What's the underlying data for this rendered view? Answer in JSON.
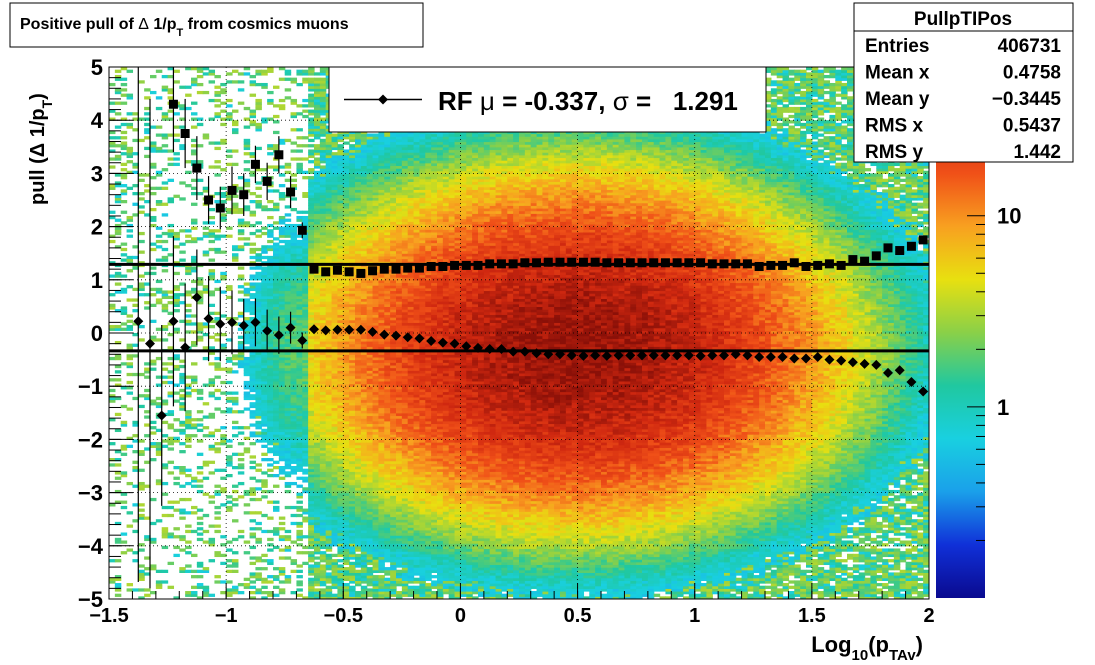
{
  "title": {
    "prefix": "Positive pull of ",
    "delta": "Δ",
    "one_over_p": " 1/p",
    "sub": "T",
    "suffix": " from cosmics muons"
  },
  "stats": {
    "name": "PullpTIPos",
    "rows": [
      {
        "label": "Entries",
        "value": "406731"
      },
      {
        "label": "Mean x",
        "value": "0.4758"
      },
      {
        "label": "Mean y",
        "value": "−0.3445"
      },
      {
        "label": "RMS x",
        "value": "0.5437"
      },
      {
        "label": "RMS y",
        "value": "1.442"
      }
    ]
  },
  "legend": {
    "text_rf": "RF ",
    "mu": "μ",
    "text_mu_val": " = -0.337, ",
    "sigma": "σ",
    "text_sigma_val": " =   1.291"
  },
  "colors": {
    "frame": "#000000",
    "grid": "#000000"
  },
  "chart_data": {
    "type": "heatmap",
    "xlabel_main": "Log",
    "xlabel_sub": "10",
    "xlabel_paren_open": "(p",
    "xlabel_sub2": "TAv",
    "xlabel_paren_close": ")",
    "ylabel_main": "pull (Δ 1/p",
    "ylabel_sub": "T",
    "ylabel_close": ")",
    "xlim": [
      -1.5,
      2.0
    ],
    "ylim": [
      -5,
      5
    ],
    "grid": true,
    "x_ticks": [
      -1.5,
      -1,
      -0.5,
      0,
      0.5,
      1,
      1.5,
      2
    ],
    "x_tick_labels": [
      "−1.5",
      "−1",
      "−0.5",
      "0",
      "0.5",
      "1",
      "1.5",
      "2"
    ],
    "y_ticks": [
      -5,
      -4,
      -3,
      -2,
      -1,
      0,
      1,
      2,
      3,
      4,
      5
    ],
    "y_tick_labels": [
      "−5",
      "−4",
      "−3",
      "−2",
      "−1",
      "0",
      "1",
      "2",
      "3",
      "4",
      "5"
    ],
    "colorbar": {
      "scale": "log",
      "zlim": [
        0.1,
        60
      ],
      "tick_values": [
        1,
        10
      ],
      "tick_labels": [
        "1",
        "10"
      ]
    },
    "reference_lines": [
      {
        "y": 1.291
      },
      {
        "y": -0.337
      }
    ],
    "density_peak": {
      "x": 0.5,
      "y": -0.3
    },
    "sigma_series": {
      "x": [
        -1.225,
        -1.175,
        -1.125,
        -1.075,
        -1.025,
        -0.975,
        -0.925,
        -0.875,
        -0.825,
        -0.775,
        -0.725,
        -0.675,
        -0.625,
        -0.575,
        -0.525,
        -0.475,
        -0.425,
        -0.375,
        -0.325,
        -0.275,
        -0.225,
        -0.175,
        -0.125,
        -0.075,
        -0.025,
        0.025,
        0.075,
        0.125,
        0.175,
        0.225,
        0.275,
        0.325,
        0.375,
        0.425,
        0.475,
        0.525,
        0.575,
        0.625,
        0.675,
        0.725,
        0.775,
        0.825,
        0.875,
        0.925,
        0.975,
        1.025,
        1.075,
        1.125,
        1.175,
        1.225,
        1.275,
        1.325,
        1.375,
        1.425,
        1.475,
        1.525,
        1.575,
        1.625,
        1.675,
        1.725,
        1.775,
        1.825,
        1.875,
        1.925,
        1.975
      ],
      "y": [
        4.3,
        3.75,
        3.1,
        2.5,
        2.35,
        2.68,
        2.6,
        3.17,
        2.85,
        3.35,
        2.65,
        1.93,
        1.2,
        1.15,
        1.18,
        1.15,
        1.12,
        1.17,
        1.2,
        1.2,
        1.22,
        1.22,
        1.25,
        1.25,
        1.27,
        1.27,
        1.27,
        1.3,
        1.3,
        1.3,
        1.32,
        1.32,
        1.33,
        1.33,
        1.33,
        1.33,
        1.33,
        1.32,
        1.32,
        1.32,
        1.32,
        1.32,
        1.32,
        1.32,
        1.32,
        1.32,
        1.3,
        1.3,
        1.3,
        1.3,
        1.25,
        1.27,
        1.27,
        1.32,
        1.25,
        1.27,
        1.3,
        1.27,
        1.38,
        1.35,
        1.45,
        1.6,
        1.55,
        1.63,
        1.75
      ],
      "yerr": [
        0.9,
        0.65,
        0.6,
        0.45,
        0.4,
        0.45,
        0.4,
        0.35,
        0.35,
        0.35,
        0.3,
        0.15,
        0.05,
        0.05,
        0.03,
        0.03,
        0.03,
        0.02,
        0.02,
        0.02,
        0.02,
        0.02,
        0.02,
        0.02,
        0.02,
        0.02,
        0.02,
        0.02,
        0.02,
        0.02,
        0.02,
        0.02,
        0.02,
        0.02,
        0.02,
        0.02,
        0.02,
        0.02,
        0.02,
        0.02,
        0.02,
        0.02,
        0.02,
        0.02,
        0.02,
        0.02,
        0.02,
        0.02,
        0.02,
        0.02,
        0.02,
        0.02,
        0.02,
        0.02,
        0.02,
        0.02,
        0.02,
        0.02,
        0.03,
        0.03,
        0.03,
        0.04,
        0.04,
        0.05,
        0.06
      ]
    },
    "mean_series": {
      "x": [
        -1.375,
        -1.325,
        -1.275,
        -1.225,
        -1.175,
        -1.125,
        -1.075,
        -1.025,
        -0.975,
        -0.925,
        -0.875,
        -0.825,
        -0.775,
        -0.725,
        -0.675,
        -0.625,
        -0.575,
        -0.525,
        -0.475,
        -0.425,
        -0.375,
        -0.325,
        -0.275,
        -0.225,
        -0.175,
        -0.125,
        -0.075,
        -0.025,
        0.025,
        0.075,
        0.125,
        0.175,
        0.225,
        0.275,
        0.325,
        0.375,
        0.425,
        0.475,
        0.525,
        0.575,
        0.625,
        0.675,
        0.725,
        0.775,
        0.825,
        0.875,
        0.925,
        0.975,
        1.025,
        1.075,
        1.125,
        1.175,
        1.225,
        1.275,
        1.325,
        1.375,
        1.425,
        1.475,
        1.525,
        1.575,
        1.625,
        1.675,
        1.725,
        1.775,
        1.825,
        1.875,
        1.925,
        1.975
      ],
      "y": [
        0.22,
        -0.2,
        -1.55,
        0.22,
        -0.27,
        0.67,
        0.27,
        0.17,
        0.2,
        0.14,
        0.2,
        0.04,
        -0.04,
        0.1,
        -0.14,
        0.07,
        0.05,
        0.06,
        0.06,
        0.06,
        0.02,
        -0.03,
        -0.05,
        -0.08,
        -0.1,
        -0.15,
        -0.18,
        -0.2,
        -0.25,
        -0.28,
        -0.3,
        -0.3,
        -0.35,
        -0.35,
        -0.38,
        -0.4,
        -0.4,
        -0.42,
        -0.43,
        -0.42,
        -0.43,
        -0.42,
        -0.42,
        -0.42,
        -0.42,
        -0.42,
        -0.42,
        -0.42,
        -0.43,
        -0.42,
        -0.42,
        -0.4,
        -0.42,
        -0.45,
        -0.45,
        -0.45,
        -0.48,
        -0.48,
        -0.45,
        -0.5,
        -0.52,
        -0.55,
        -0.58,
        -0.6,
        -0.75,
        -0.7,
        -0.92,
        -1.1
      ],
      "yerr": [
        4.9,
        4.6,
        1.7,
        1.6,
        1.2,
        0.9,
        0.8,
        0.7,
        0.6,
        0.5,
        0.45,
        0.4,
        0.35,
        0.3,
        0.15,
        0.05,
        0.04,
        0.03,
        0.03,
        0.02,
        0.02,
        0.02,
        0.02,
        0.02,
        0.02,
        0.02,
        0.02,
        0.02,
        0.02,
        0.02,
        0.02,
        0.02,
        0.02,
        0.02,
        0.02,
        0.02,
        0.02,
        0.02,
        0.02,
        0.02,
        0.02,
        0.02,
        0.02,
        0.02,
        0.02,
        0.02,
        0.02,
        0.02,
        0.02,
        0.02,
        0.02,
        0.02,
        0.02,
        0.02,
        0.02,
        0.02,
        0.02,
        0.02,
        0.02,
        0.02,
        0.03,
        0.03,
        0.03,
        0.03,
        0.04,
        0.04,
        0.05,
        0.06
      ]
    }
  }
}
